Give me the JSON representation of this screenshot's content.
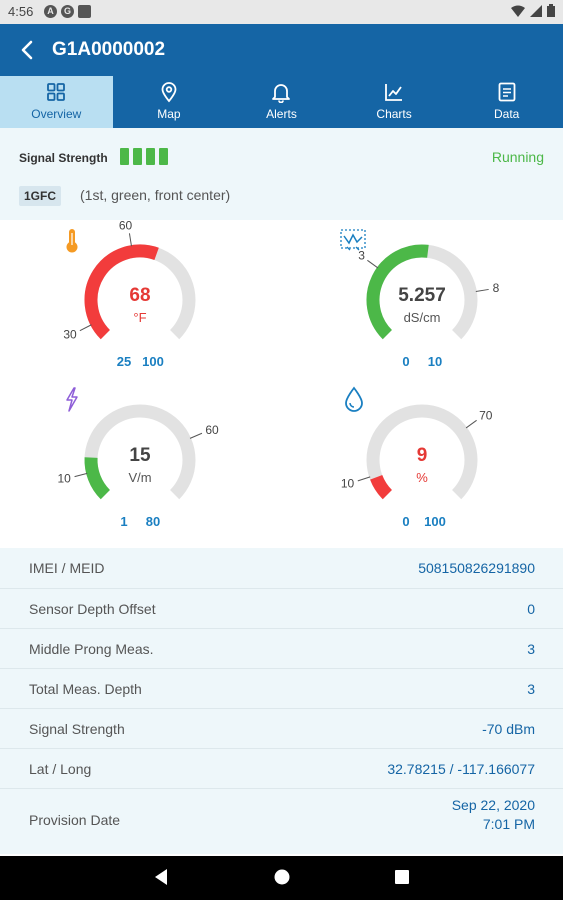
{
  "status_bar": {
    "time": "4:56"
  },
  "header": {
    "title": "G1A0000002"
  },
  "tabs": [
    {
      "label": "Overview",
      "icon": "grid-icon"
    },
    {
      "label": "Map",
      "icon": "map-pin-icon"
    },
    {
      "label": "Alerts",
      "icon": "bell-icon"
    },
    {
      "label": "Charts",
      "icon": "line-chart-icon"
    },
    {
      "label": "Data",
      "icon": "document-icon"
    }
  ],
  "info": {
    "signal_label": "Signal Strength",
    "signal_bars": 4,
    "state": "Running",
    "code": "1GFC",
    "description": "(1st, green, front center)"
  },
  "gauges": [
    {
      "icon": "thermometer-icon",
      "value": "68",
      "unit": "°F",
      "min": "25",
      "max": "100",
      "low": "30",
      "high": "60",
      "num_value": 68,
      "num_min": 25,
      "num_max": 100,
      "num_low": 30,
      "num_high": 60,
      "color": "#f23c3c",
      "value_color": "#e53935"
    },
    {
      "icon": "conductivity-icon",
      "value": "5.257",
      "unit": "dS/cm",
      "min": "0",
      "max": "10",
      "low": "3",
      "high": "8",
      "num_value": 5.257,
      "num_min": 0,
      "num_max": 10,
      "num_low": 3,
      "num_high": 8,
      "color": "#4cb848",
      "value_color": "#444444"
    },
    {
      "icon": "lightning-icon",
      "value": "15",
      "unit": "V/m",
      "min": "1",
      "max": "80",
      "low": "10",
      "high": "60",
      "num_value": 15,
      "num_min": 1,
      "num_max": 80,
      "num_low": 10,
      "num_high": 60,
      "color": "#4cb848",
      "value_color": "#444444"
    },
    {
      "icon": "water-drop-icon",
      "value": "9",
      "unit": "%",
      "min": "0",
      "max": "100",
      "low": "10",
      "high": "70",
      "num_value": 9,
      "num_min": 0,
      "num_max": 100,
      "num_low": 10,
      "num_high": 70,
      "color": "#f23c3c",
      "value_color": "#e53935"
    }
  ],
  "details": [
    {
      "key": "IMEI / MEID",
      "value": "508150826291890"
    },
    {
      "key": "Sensor Depth Offset",
      "value": "0"
    },
    {
      "key": "Middle Prong Meas.",
      "value": "3"
    },
    {
      "key": "Total Meas. Depth",
      "value": "3"
    },
    {
      "key": "Signal Strength",
      "value": "-70 dBm"
    },
    {
      "key": "Lat / Long",
      "value": "32.78215 / -117.166077"
    },
    {
      "key": "Provision Date",
      "value": "Sep 22, 2020",
      "value2": "7:01 PM"
    }
  ],
  "colors": {
    "primary": "#1565a5",
    "active_tab": "#b9dff2",
    "green": "#4cb848",
    "red": "#f23c3c",
    "panel": "#eef7fa"
  }
}
